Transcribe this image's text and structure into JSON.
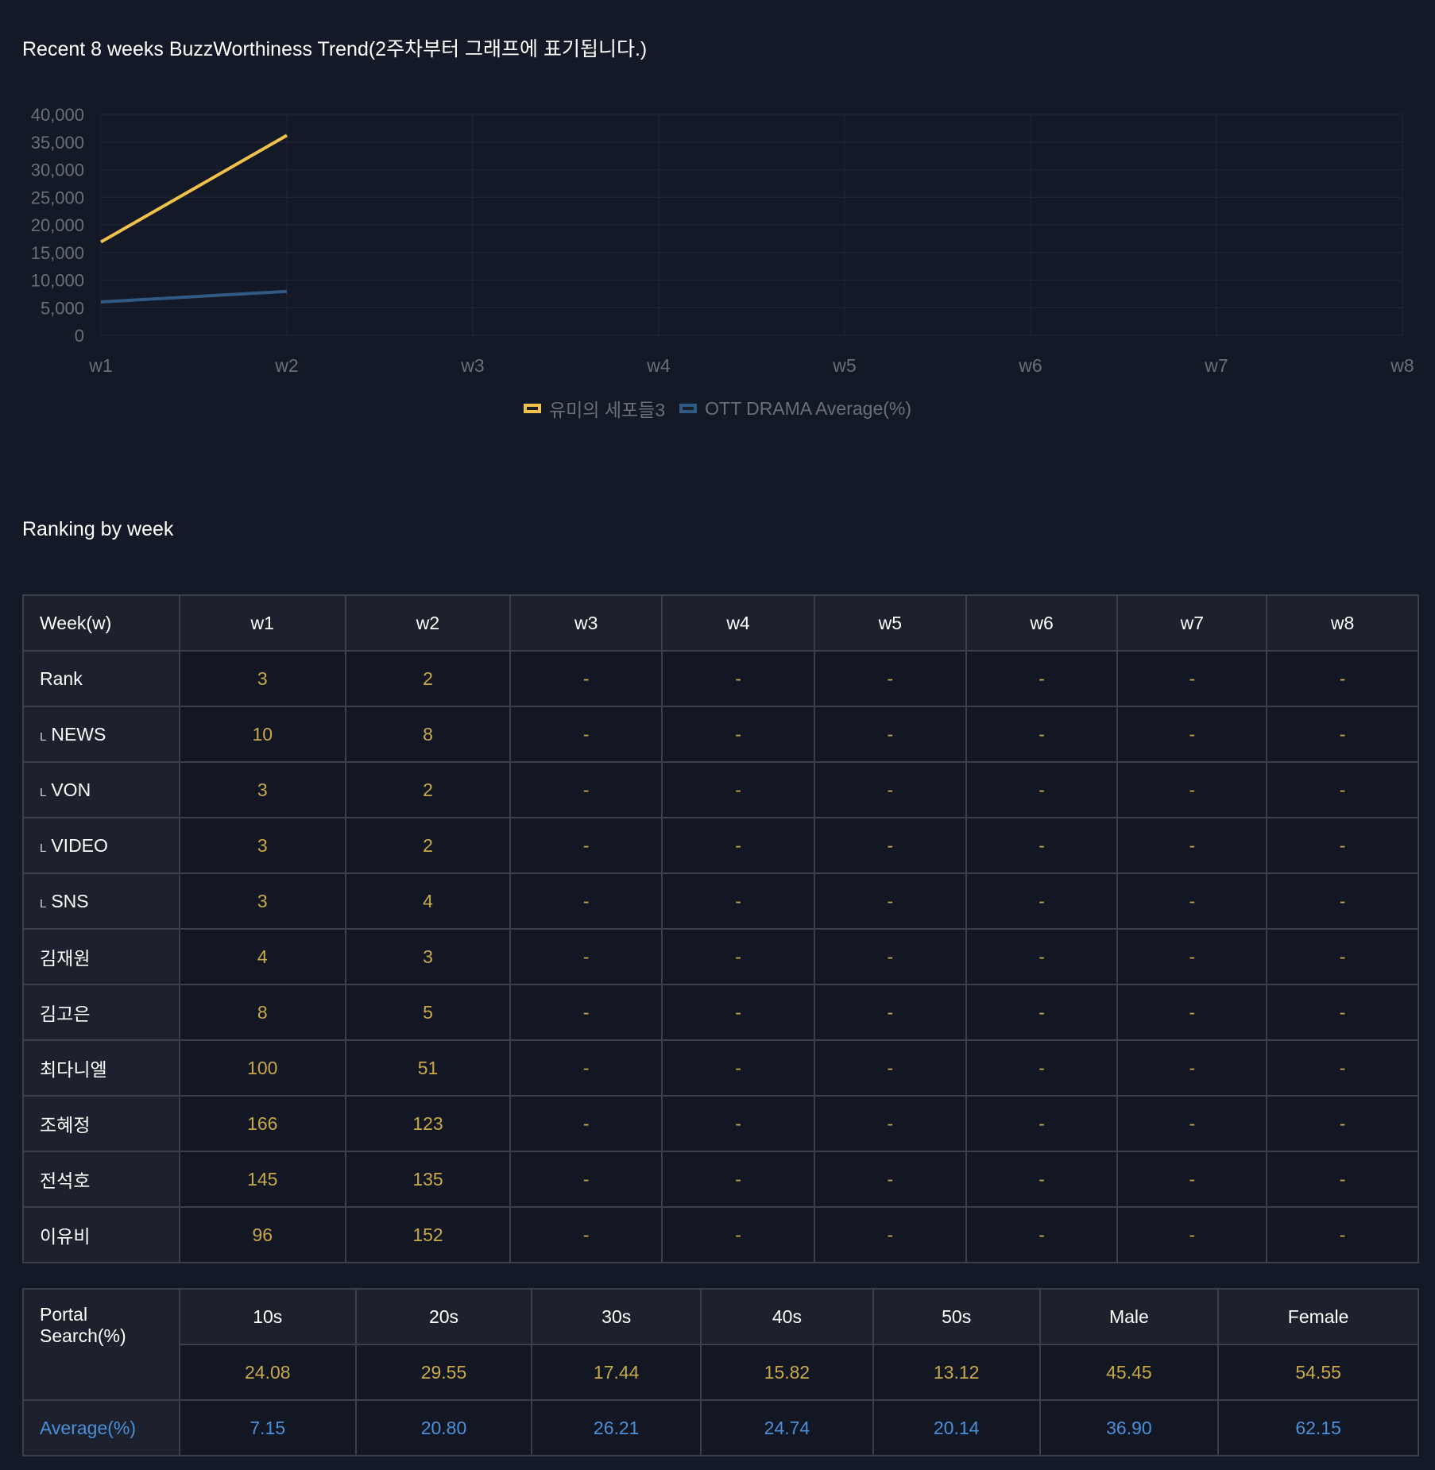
{
  "chart_data": {
    "type": "line",
    "title": "Recent 8 weeks BuzzWorthiness Trend(2주차부터 그래프에 표기됩니다.)",
    "categories": [
      "w1",
      "w2",
      "w3",
      "w4",
      "w5",
      "w6",
      "w7",
      "w8"
    ],
    "yticks": [
      "0",
      "5,000",
      "10,000",
      "15,000",
      "20,000",
      "25,000",
      "30,000",
      "35,000",
      "40,000"
    ],
    "ylim": [
      0,
      40000
    ],
    "series": [
      {
        "name": "유미의 세포들3",
        "color": "#f0c24b",
        "values": [
          16900,
          36200,
          null,
          null,
          null,
          null,
          null,
          null
        ]
      },
      {
        "name": "OTT DRAMA Average(%)",
        "color": "#2f5a86",
        "values": [
          6050,
          7950,
          null,
          null,
          null,
          null,
          null,
          null
        ]
      }
    ],
    "legend": "bottom-center",
    "grid": true
  },
  "ranking": {
    "title": "Ranking by week",
    "header": [
      "Week(w)",
      "w1",
      "w2",
      "w3",
      "w4",
      "w5",
      "w6",
      "w7",
      "w8"
    ],
    "rows": [
      {
        "label": "Rank",
        "sub": "",
        "values": [
          "3",
          "2",
          "-",
          "-",
          "-",
          "-",
          "-",
          "-"
        ]
      },
      {
        "label": "NEWS",
        "sub": "L",
        "values": [
          "10",
          "8",
          "-",
          "-",
          "-",
          "-",
          "-",
          "-"
        ]
      },
      {
        "label": "VON",
        "sub": "L",
        "values": [
          "3",
          "2",
          "-",
          "-",
          "-",
          "-",
          "-",
          "-"
        ]
      },
      {
        "label": "VIDEO",
        "sub": "L",
        "values": [
          "3",
          "2",
          "-",
          "-",
          "-",
          "-",
          "-",
          "-"
        ]
      },
      {
        "label": "SNS",
        "sub": "L",
        "values": [
          "3",
          "4",
          "-",
          "-",
          "-",
          "-",
          "-",
          "-"
        ]
      },
      {
        "label": "김재원",
        "sub": "",
        "values": [
          "4",
          "3",
          "-",
          "-",
          "-",
          "-",
          "-",
          "-"
        ]
      },
      {
        "label": "김고은",
        "sub": "",
        "values": [
          "8",
          "5",
          "-",
          "-",
          "-",
          "-",
          "-",
          "-"
        ]
      },
      {
        "label": "최다니엘",
        "sub": "",
        "values": [
          "100",
          "51",
          "-",
          "-",
          "-",
          "-",
          "-",
          "-"
        ]
      },
      {
        "label": "조혜정",
        "sub": "",
        "values": [
          "166",
          "123",
          "-",
          "-",
          "-",
          "-",
          "-",
          "-"
        ]
      },
      {
        "label": "전석호",
        "sub": "",
        "values": [
          "145",
          "135",
          "-",
          "-",
          "-",
          "-",
          "-",
          "-"
        ]
      },
      {
        "label": "이유비",
        "sub": "",
        "values": [
          "96",
          "152",
          "-",
          "-",
          "-",
          "-",
          "-",
          "-"
        ]
      }
    ]
  },
  "portal": {
    "label": "Portal Search(%)",
    "header": [
      "10s",
      "20s",
      "30s",
      "40s",
      "50s",
      "Male",
      "Female"
    ],
    "values": [
      "24.08",
      "29.55",
      "17.44",
      "15.82",
      "13.12",
      "45.45",
      "54.55"
    ],
    "avg_label": "Average(%)",
    "avg_values": [
      "7.15",
      "20.80",
      "26.21",
      "24.74",
      "20.14",
      "36.90",
      "62.15"
    ]
  }
}
